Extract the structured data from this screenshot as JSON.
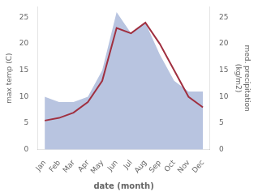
{
  "chart_data": {
    "type": "line",
    "categories": [
      "Jan",
      "Feb",
      "Mar",
      "Apr",
      "May",
      "Jun",
      "Jul",
      "Aug",
      "Sep",
      "Oct",
      "Nov",
      "Dec"
    ],
    "xlabel": "date (month)",
    "ylabel": "max temp (C)",
    "y2label": "med. precipitation\n(kg/m2)",
    "series": [
      {
        "type": "line",
        "color": "#a03040",
        "values": [
          5.5,
          6.0,
          7.0,
          9.0,
          13.0,
          23.0,
          22.0,
          24.0,
          20.0,
          15.0,
          10.0,
          8.0
        ]
      },
      {
        "type": "area",
        "color": "#b8c4e0",
        "axis": "y2",
        "values": [
          10.0,
          9.0,
          9.0,
          10.0,
          15.0,
          26.0,
          22.0,
          24.0,
          18.0,
          13.0,
          11.0,
          11.0
        ]
      }
    ],
    "ylim": [
      0,
      27
    ],
    "yticks": [
      0,
      5,
      10,
      15,
      20,
      25
    ],
    "y2lim": [
      0,
      27
    ],
    "y2ticks": [
      0,
      5,
      10,
      15,
      20,
      25
    ],
    "grid": false
  }
}
